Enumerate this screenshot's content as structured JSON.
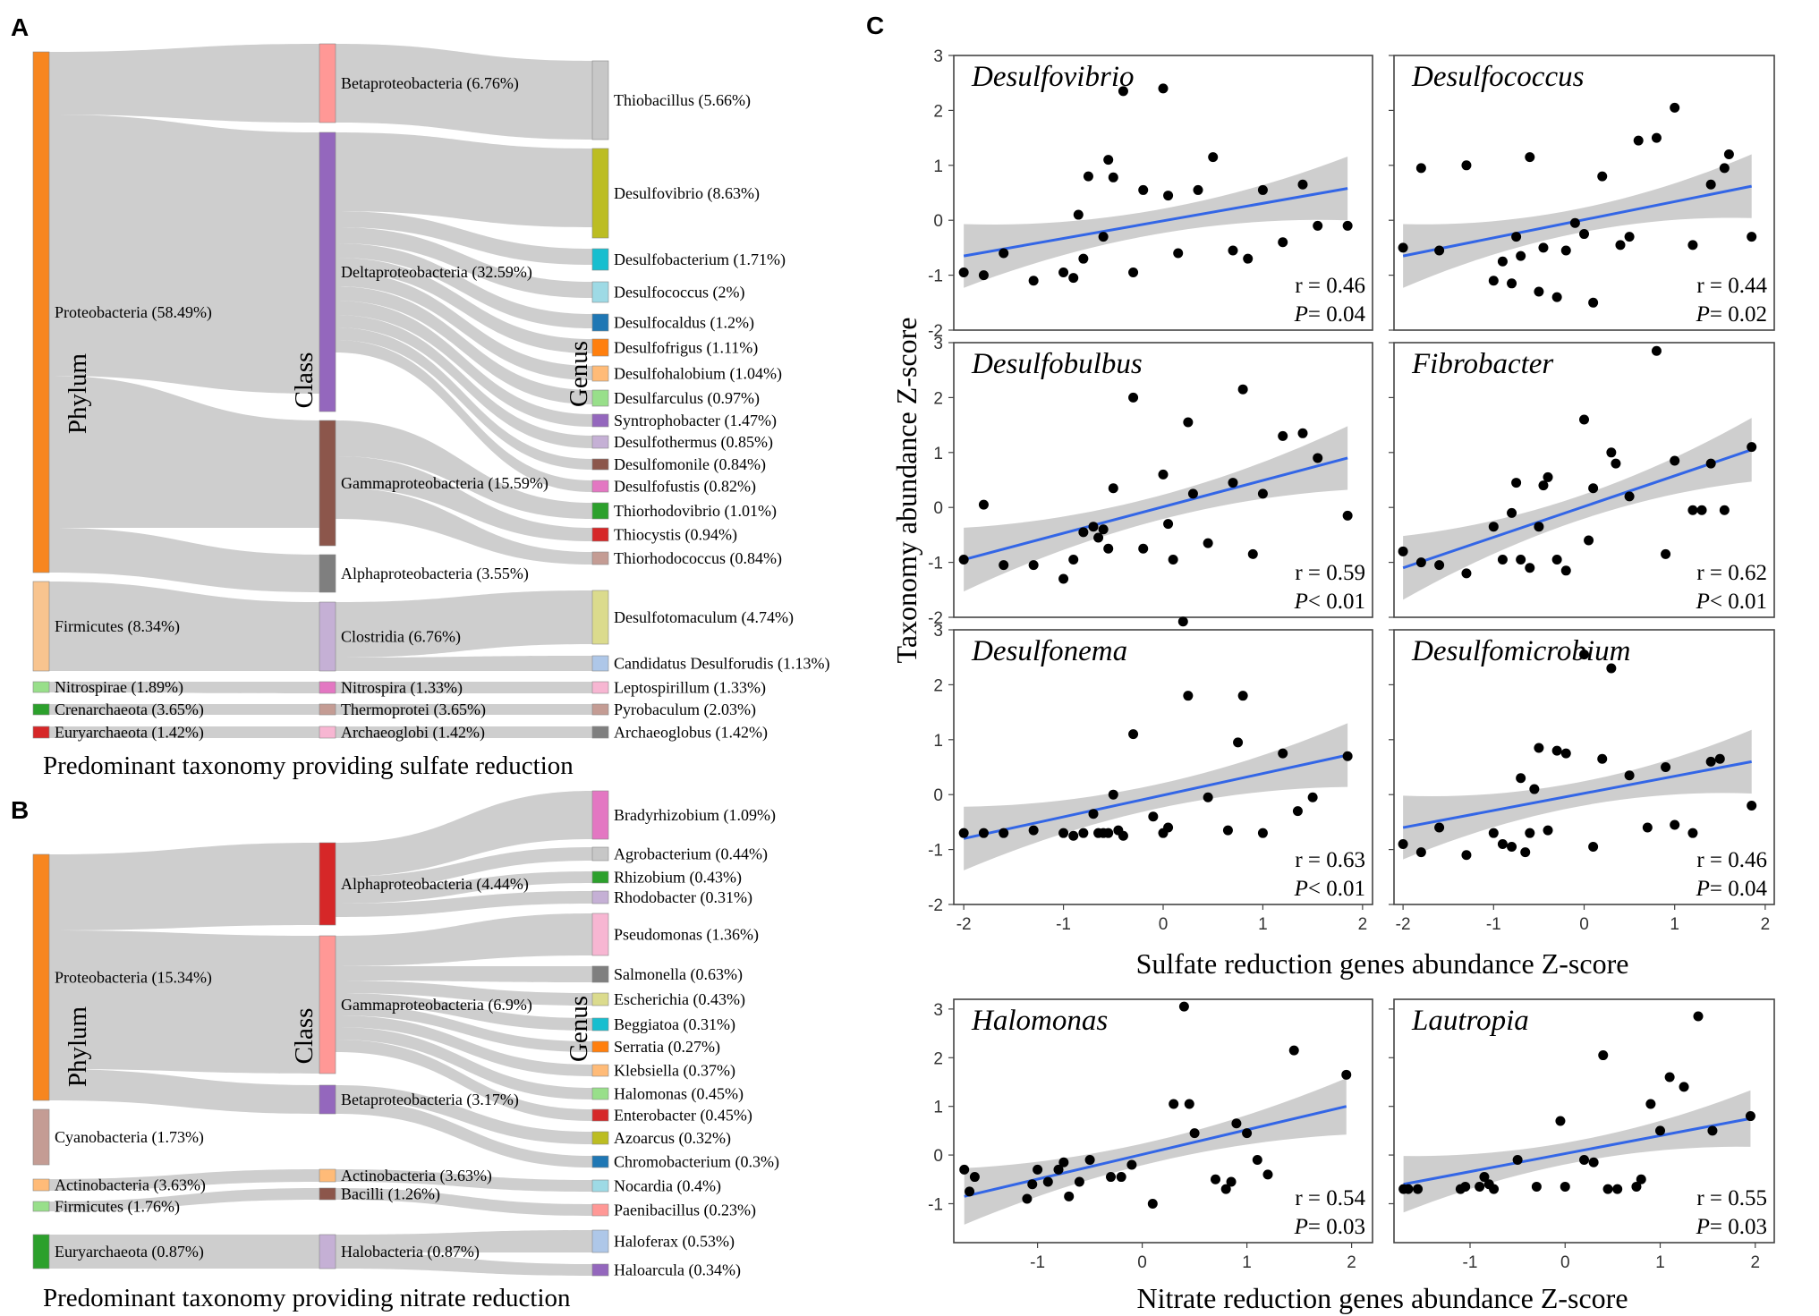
{
  "panels": {
    "A": {
      "letter": "A",
      "caption": "Predominant taxonomy providing sulfate reduction",
      "col_titles": {
        "phylum": "Phylum",
        "class": "Class",
        "genus": "Genus"
      },
      "phyla": [
        {
          "label": "Proteobacteria (58.49%)",
          "color": "#f7861f"
        },
        {
          "label": "Firmicutes (8.34%)",
          "color": "#f8c48f"
        },
        {
          "label": "Nitrospirae (1.89%)",
          "color": "#98df8a"
        },
        {
          "label": "Crenarchaeota (3.65%)",
          "color": "#2ca02c"
        },
        {
          "label": "Euryarchaeota (1.42%)",
          "color": "#d62728"
        }
      ],
      "classes": [
        {
          "label": "Betaproteobacteria (6.76%)",
          "color": "#ff9896"
        },
        {
          "label": "Deltaproteobacteria (32.59%)",
          "color": "#9467bd"
        },
        {
          "label": "Gammaproteobacteria (15.59%)",
          "color": "#8c564b"
        },
        {
          "label": "Alphaproteobacteria (3.55%)",
          "color": "#7f7f7f"
        },
        {
          "label": "Clostridia (6.76%)",
          "color": "#c5b0d5"
        },
        {
          "label": "Nitrospira (1.33%)",
          "color": "#e377c2"
        },
        {
          "label": "Thermoprotei (3.65%)",
          "color": "#c49c94"
        },
        {
          "label": "Archaeoglobi (1.42%)",
          "color": "#f7b6d2"
        }
      ],
      "genera": [
        {
          "label": "Thiobacillus (5.66%)",
          "color": "#c7c7c7"
        },
        {
          "label": "Desulfovibrio (8.63%)",
          "color": "#bcbd22"
        },
        {
          "label": "Desulfobacterium (1.71%)",
          "color": "#17becf"
        },
        {
          "label": "Desulfococcus (2%)",
          "color": "#9edae5"
        },
        {
          "label": "Desulfocaldus (1.2%)",
          "color": "#1f77b4"
        },
        {
          "label": "Desulfofrigus (1.11%)",
          "color": "#ff7f0e"
        },
        {
          "label": "Desulfohalobium (1.04%)",
          "color": "#ffbb78"
        },
        {
          "label": "Desulfarculus (0.97%)",
          "color": "#98df8a"
        },
        {
          "label": "Syntrophobacter (1.47%)",
          "color": "#9467bd"
        },
        {
          "label": "Desulfothermus (0.85%)",
          "color": "#c5b0d5"
        },
        {
          "label": "Desulfomonile (0.84%)",
          "color": "#8c564b"
        },
        {
          "label": "Desulfofustis (0.82%)",
          "color": "#e377c2"
        },
        {
          "label": "Thiorhodovibrio (1.01%)",
          "color": "#2ca02c"
        },
        {
          "label": "Thiocystis (0.94%)",
          "color": "#d62728"
        },
        {
          "label": "Thiorhodococcus (0.84%)",
          "color": "#c49c94"
        },
        {
          "label": "Desulfotomaculum (4.74%)",
          "color": "#dbdb8d"
        },
        {
          "label": "Candidatus Desulforudis (1.13%)",
          "color": "#aec7e8"
        },
        {
          "label": "Leptospirillum (1.33%)",
          "color": "#f7b6d2"
        },
        {
          "label": "Pyrobaculum (2.03%)",
          "color": "#c49c94"
        },
        {
          "label": "Archaeoglobus (1.42%)",
          "color": "#7f7f7f"
        }
      ]
    },
    "B": {
      "letter": "B",
      "caption": "Predominant taxonomy providing nitrate reduction",
      "col_titles": {
        "phylum": "Phylum",
        "class": "Class",
        "genus": "Genus"
      },
      "phyla": [
        {
          "label": "Proteobacteria (15.34%)",
          "color": "#f7861f"
        },
        {
          "label": "Cyanobacteria (1.73%)",
          "color": "#c49c94"
        },
        {
          "label": "Actinobacteria (3.63%)",
          "color": "#ffbb78"
        },
        {
          "label": "Firmicutes (1.76%)",
          "color": "#98df8a"
        },
        {
          "label": "Euryarchaeota (0.87%)",
          "color": "#2ca02c"
        }
      ],
      "classes": [
        {
          "label": "Alphaproteobacteria (4.44%)",
          "color": "#d62728"
        },
        {
          "label": "Gammaproteobacteria (6.9%)",
          "color": "#ff9896"
        },
        {
          "label": "Betaproteobacteria (3.17%)",
          "color": "#9467bd"
        },
        {
          "label": "Actinobacteria (3.63%)",
          "color": "#ffbb78"
        },
        {
          "label": "Bacilli (1.26%)",
          "color": "#8c564b"
        },
        {
          "label": "Halobacteria (0.87%)",
          "color": "#c5b0d5"
        }
      ],
      "genera": [
        {
          "label": "Bradyrhizobium (1.09%)",
          "color": "#e377c2"
        },
        {
          "label": "Agrobacterium (0.44%)",
          "color": "#c7c7c7"
        },
        {
          "label": "Rhizobium (0.43%)",
          "color": "#2ca02c"
        },
        {
          "label": "Rhodobacter (0.31%)",
          "color": "#c5b0d5"
        },
        {
          "label": "Pseudomonas (1.36%)",
          "color": "#f7b6d2"
        },
        {
          "label": "Salmonella (0.63%)",
          "color": "#7f7f7f"
        },
        {
          "label": "Escherichia (0.43%)",
          "color": "#dbdb8d"
        },
        {
          "label": "Beggiatoa (0.31%)",
          "color": "#17becf"
        },
        {
          "label": "Serratia (0.27%)",
          "color": "#ff7f0e"
        },
        {
          "label": "Klebsiella (0.37%)",
          "color": "#ffbb78"
        },
        {
          "label": "Halomonas (0.45%)",
          "color": "#98df8a"
        },
        {
          "label": "Enterobacter (0.45%)",
          "color": "#d62728"
        },
        {
          "label": "Azoarcus (0.32%)",
          "color": "#bcbd22"
        },
        {
          "label": "Chromobacterium (0.3%)",
          "color": "#1f77b4"
        },
        {
          "label": "Nocardia (0.4%)",
          "color": "#9edae5"
        },
        {
          "label": "Paenibacillus (0.23%)",
          "color": "#ff9896"
        },
        {
          "label": "Haloferax (0.53%)",
          "color": "#aec7e8"
        },
        {
          "label": "Haloarcula (0.34%)",
          "color": "#9467bd"
        }
      ]
    },
    "C": {
      "letter": "C",
      "ylabel": "Taxonomy abundance Z-score",
      "xlabel_top": "Sulfate reduction genes abundance Z-score",
      "xlabel_bottom": "Nitrate reduction genes abundance Z-score"
    }
  },
  "chart_data": [
    {
      "type": "scatter",
      "title": "Desulfovibrio",
      "r_text": "r = 0.46",
      "p_label": "P",
      "p_rest": "= 0.04",
      "xlim": [
        -2.1,
        2.1
      ],
      "ylim": [
        -2,
        3
      ],
      "fit": {
        "x0": -2,
        "y0": -0.65,
        "x1": 1.85,
        "y1": 0.58
      },
      "x": [
        -2,
        -1.8,
        -1.6,
        -1.3,
        -1,
        -0.9,
        -0.85,
        -0.8,
        -0.75,
        -0.6,
        -0.55,
        -0.5,
        -0.4,
        -0.3,
        -0.2,
        0,
        0.05,
        0.15,
        0.35,
        0.5,
        0.7,
        0.85,
        1,
        1.2,
        1.4,
        1.55,
        1.85
      ],
      "y": [
        -0.95,
        -1,
        -0.6,
        -1.1,
        -0.95,
        -1.05,
        0.1,
        -0.7,
        0.8,
        -0.3,
        1.1,
        0.78,
        2.35,
        -0.95,
        0.55,
        2.4,
        0.45,
        -0.6,
        0.55,
        1.15,
        -0.55,
        -0.7,
        0.55,
        -0.4,
        0.65,
        -0.1,
        -0.1
      ]
    },
    {
      "type": "scatter",
      "title": "Desulfococcus",
      "r_text": "r = 0.44",
      "p_label": "P",
      "p_rest": "= 0.02",
      "xlim": [
        -2.1,
        2.1
      ],
      "ylim": [
        -2,
        3
      ],
      "fit": {
        "x0": -2,
        "y0": -0.65,
        "x1": 1.85,
        "y1": 0.62
      },
      "x": [
        -2,
        -1.8,
        -1.6,
        -1.3,
        -1,
        -0.9,
        -0.8,
        -0.75,
        -0.7,
        -0.6,
        -0.5,
        -0.45,
        -0.3,
        -0.2,
        -0.1,
        0,
        0.1,
        0.2,
        0.4,
        0.5,
        0.6,
        0.8,
        1,
        1.2,
        1.4,
        1.55,
        1.6,
        1.85
      ],
      "y": [
        -0.5,
        0.95,
        -0.55,
        1,
        -1.1,
        -0.75,
        -1.15,
        -0.3,
        -0.65,
        1.15,
        -1.3,
        -0.5,
        -1.4,
        -0.55,
        -0.05,
        -0.25,
        -1.5,
        0.8,
        -0.45,
        -0.3,
        1.45,
        1.5,
        2.05,
        -0.45,
        0.65,
        0.95,
        1.2,
        -0.3
      ]
    },
    {
      "type": "scatter",
      "title": "Desulfobulbus",
      "r_text": "r = 0.59",
      "p_label": "P",
      "p_rest": "< 0.01",
      "xlim": [
        -2.1,
        2.1
      ],
      "ylim": [
        -2,
        3
      ],
      "fit": {
        "x0": -2,
        "y0": -0.95,
        "x1": 1.85,
        "y1": 0.9
      },
      "x": [
        -2,
        -1.8,
        -1.6,
        -1.3,
        -1,
        -0.9,
        -0.8,
        -0.7,
        -0.65,
        -0.6,
        -0.55,
        -0.5,
        -0.3,
        -0.2,
        0,
        0.05,
        0.1,
        0.25,
        0.3,
        0.45,
        0.7,
        0.8,
        0.9,
        1,
        1.2,
        1.4,
        1.55,
        1.85
      ],
      "y": [
        -0.95,
        0.05,
        -1.05,
        -1.05,
        -1.3,
        -0.95,
        -0.45,
        -0.35,
        -0.55,
        -0.4,
        -0.75,
        0.35,
        2,
        -0.75,
        0.6,
        -0.3,
        -0.95,
        1.55,
        0.25,
        -0.65,
        0.45,
        2.15,
        -0.85,
        0.25,
        1.3,
        1.35,
        0.9,
        -0.15
      ]
    },
    {
      "type": "scatter",
      "title": "Fibrobacter",
      "r_text": "r = 0.62",
      "p_label": "P",
      "p_rest": "< 0.01",
      "xlim": [
        -2.1,
        2.1
      ],
      "ylim": [
        -2,
        3
      ],
      "fit": {
        "x0": -2,
        "y0": -1.1,
        "x1": 1.85,
        "y1": 1.05
      },
      "x": [
        -2,
        -1.8,
        -1.6,
        -1.3,
        -1,
        -0.9,
        -0.8,
        -0.75,
        -0.7,
        -0.6,
        -0.5,
        -0.45,
        -0.4,
        -0.3,
        -0.2,
        0,
        0.05,
        0.1,
        0.3,
        0.35,
        0.5,
        0.8,
        0.9,
        1,
        1.2,
        1.3,
        1.4,
        1.55,
        1.85
      ],
      "y": [
        -0.8,
        -1,
        -1.05,
        -1.2,
        -0.35,
        -0.95,
        -0.1,
        0.45,
        -0.95,
        -1.1,
        -0.35,
        0.4,
        0.55,
        -0.95,
        -1.15,
        1.6,
        -0.6,
        0.35,
        1,
        0.8,
        0.2,
        2.85,
        -0.85,
        0.85,
        -0.05,
        -0.05,
        0.8,
        -0.05,
        1.1
      ]
    },
    {
      "type": "scatter",
      "title": "Desulfonema",
      "r_text": "r = 0.63",
      "p_label": "P",
      "p_rest": "< 0.01",
      "xlim": [
        -2.1,
        2.1
      ],
      "ylim": [
        -2,
        3
      ],
      "fit": {
        "x0": -2,
        "y0": -0.8,
        "x1": 1.85,
        "y1": 0.72
      },
      "x": [
        -2,
        -1.8,
        -1.6,
        -1.3,
        -1,
        -0.9,
        -0.8,
        -0.7,
        -0.65,
        -0.6,
        -0.55,
        -0.5,
        -0.45,
        -0.4,
        -0.3,
        -0.1,
        0,
        0.05,
        0.2,
        0.25,
        0.45,
        0.65,
        0.75,
        0.8,
        1,
        1.2,
        1.35,
        1.5,
        1.85
      ],
      "y": [
        -0.7,
        -0.7,
        -0.7,
        -0.65,
        -0.7,
        -0.75,
        -0.7,
        -0.35,
        -0.7,
        -0.7,
        -0.7,
        0,
        -0.65,
        -0.75,
        1.1,
        -0.4,
        -0.7,
        -0.6,
        3.15,
        1.8,
        -0.05,
        -0.65,
        0.95,
        1.8,
        -0.7,
        0.75,
        -0.3,
        -0.05,
        0.7
      ]
    },
    {
      "type": "scatter",
      "title": "Desulfomicrobium",
      "r_text": "r = 0.46",
      "p_label": "P",
      "p_rest": "= 0.04",
      "xlim": [
        -2.1,
        2.1
      ],
      "ylim": [
        -2,
        3
      ],
      "fit": {
        "x0": -2,
        "y0": -0.6,
        "x1": 1.85,
        "y1": 0.6
      },
      "x": [
        -2,
        -1.8,
        -1.6,
        -1.3,
        -1,
        -0.9,
        -0.8,
        -0.7,
        -0.65,
        -0.6,
        -0.55,
        -0.5,
        -0.4,
        -0.3,
        -0.2,
        0,
        0.1,
        0.2,
        0.3,
        0.5,
        0.7,
        0.9,
        1,
        1.2,
        1.4,
        1.5,
        1.85
      ],
      "y": [
        -0.9,
        -1.05,
        -0.6,
        -1.1,
        -0.7,
        -0.9,
        -0.95,
        0.3,
        -1.05,
        -0.7,
        0.1,
        0.85,
        -0.65,
        0.8,
        0.75,
        2.55,
        -0.95,
        0.65,
        2.3,
        0.35,
        -0.6,
        0.5,
        -0.55,
        -0.7,
        0.6,
        0.65,
        -0.2
      ]
    },
    {
      "type": "scatter",
      "title": "Halomonas",
      "r_text": "r = 0.54",
      "p_label": "P",
      "p_rest": "= 0.03",
      "xlim": [
        -1.8,
        2.2
      ],
      "ylim": [
        -1.8,
        3.2
      ],
      "fit": {
        "x0": -1.7,
        "y0": -0.85,
        "x1": 1.95,
        "y1": 1.0
      },
      "x": [
        -1.7,
        -1.65,
        -1.6,
        -1.1,
        -1.05,
        -1,
        -0.9,
        -0.8,
        -0.75,
        -0.7,
        -0.6,
        -0.5,
        -0.3,
        -0.2,
        -0.1,
        0.1,
        0.3,
        0.4,
        0.45,
        0.5,
        0.7,
        0.8,
        0.85,
        0.9,
        1,
        1.1,
        1.2,
        1.45,
        1.95
      ],
      "y": [
        -0.3,
        -0.75,
        -0.45,
        -0.9,
        -0.6,
        -0.3,
        -0.55,
        -0.3,
        -0.15,
        -0.85,
        -0.55,
        -0.1,
        -0.45,
        -0.45,
        -0.2,
        -1,
        1.05,
        3.05,
        1.05,
        0.45,
        -0.5,
        -0.7,
        -0.55,
        0.65,
        0.45,
        -0.1,
        -0.4,
        2.15,
        1.65
      ]
    },
    {
      "type": "scatter",
      "title": "Lautropia",
      "r_text": "r = 0.55",
      "p_label": "P",
      "p_rest": "= 0.03",
      "xlim": [
        -1.8,
        2.2
      ],
      "ylim": [
        -1.8,
        3.2
      ],
      "fit": {
        "x0": -1.7,
        "y0": -0.6,
        "x1": 1.95,
        "y1": 0.75
      },
      "x": [
        -1.7,
        -1.65,
        -1.55,
        -1.1,
        -1.05,
        -0.9,
        -0.85,
        -0.8,
        -0.75,
        -0.5,
        -0.3,
        -0.05,
        0,
        0.2,
        0.3,
        0.4,
        0.45,
        0.55,
        0.75,
        0.8,
        0.9,
        1,
        1.1,
        1.25,
        1.4,
        1.55,
        1.95
      ],
      "y": [
        -0.7,
        -0.7,
        -0.7,
        -0.7,
        -0.65,
        -0.65,
        -0.45,
        -0.6,
        -0.7,
        -0.1,
        -0.65,
        0.7,
        -0.65,
        -0.1,
        -0.15,
        2.05,
        -0.7,
        -0.7,
        -0.65,
        -0.5,
        1.05,
        0.5,
        1.6,
        1.4,
        2.85,
        0.5,
        0.8
      ]
    }
  ]
}
